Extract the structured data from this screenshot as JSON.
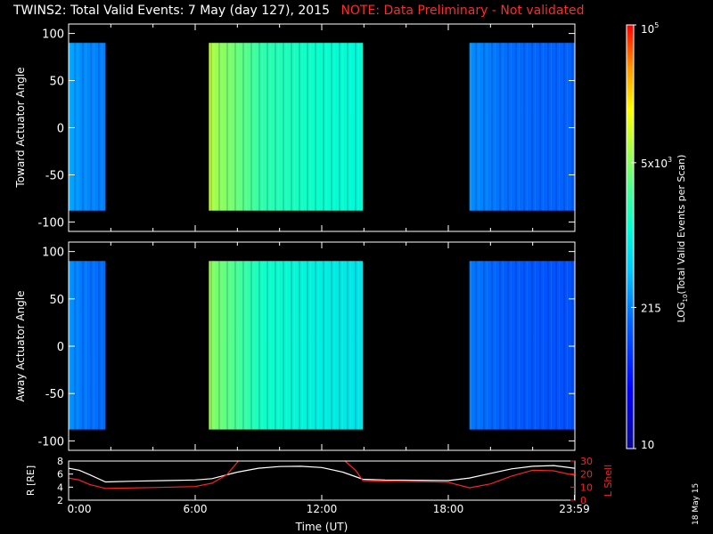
{
  "header": {
    "title": "TWINS2: Total Valid Events:  7 May (day 127), 2015",
    "note": "NOTE: Data Preliminary - Not validated"
  },
  "footer": {
    "stamp": "18 May 15"
  },
  "colors": {
    "axis": "#ffffff",
    "note": "#ff2a2a",
    "background": "#000000",
    "rtrace": "#ffffff",
    "ltrace": "#ff2020"
  },
  "colorbar": {
    "label": "LOG10(Total Valid Events per Scan)",
    "label_main": "LOG",
    "label_sub": "10",
    "label_rest": "(Total Valid Events per Scan)",
    "scale": "log",
    "min": 10,
    "max": 100000,
    "ticks": [
      {
        "value": 10,
        "base": "10",
        "exp": ""
      },
      {
        "value": 215,
        "base": "215",
        "exp": ""
      },
      {
        "value": 5000,
        "base": "5x10",
        "exp": "3"
      },
      {
        "value": 100000,
        "base": "10",
        "exp": "5"
      }
    ]
  },
  "chart_data": [
    {
      "type": "heatmap",
      "panel": "toward",
      "ylabel": "Toward Actuator Angle",
      "xlim_hours": [
        0,
        24
      ],
      "ylim": [
        -110,
        110
      ],
      "yticks": [
        "100",
        "50",
        "0",
        "-50",
        "-100"
      ],
      "ytick_values": [
        100,
        50,
        0,
        -50,
        -100
      ],
      "angle_range": [
        -88,
        90
      ],
      "segments": [
        {
          "start_hour": 0.0,
          "end_hour": 1.75,
          "log_level": 2.4
        },
        {
          "start_hour": 6.65,
          "end_hour": 13.95,
          "log_level": 3.3
        },
        {
          "start_hour": 19.0,
          "end_hour": 23.98,
          "log_level": 2.25
        }
      ]
    },
    {
      "type": "heatmap",
      "panel": "away",
      "ylabel": "Away Actuator Angle",
      "xlim_hours": [
        0,
        24
      ],
      "ylim": [
        -110,
        110
      ],
      "yticks": [
        "100",
        "50",
        "0",
        "-50",
        "-100"
      ],
      "ytick_values": [
        100,
        50,
        0,
        -50,
        -100
      ],
      "angle_range": [
        -88,
        90
      ],
      "segments": [
        {
          "start_hour": 0.0,
          "end_hour": 1.75,
          "log_level": 2.3
        },
        {
          "start_hour": 6.65,
          "end_hour": 13.95,
          "log_level": 3.15
        },
        {
          "start_hour": 19.0,
          "end_hour": 23.98,
          "log_level": 2.15
        }
      ]
    },
    {
      "type": "line",
      "panel": "orbit",
      "ylabel_left": "R [RE]",
      "ylabel_right": "L Shell",
      "ylim_left": [
        2,
        8
      ],
      "ylim_right": [
        0,
        30
      ],
      "yticks_left": [
        "2",
        "4",
        "6",
        "8"
      ],
      "ytick_values_left": [
        2,
        4,
        6,
        8
      ],
      "yticks_right": [
        "0",
        "10",
        "20",
        "30"
      ],
      "ytick_values_right": [
        0,
        10,
        20,
        30
      ],
      "xlabel": "Time (UT)",
      "xticks": [
        "0:00",
        "6:00",
        "12:00",
        "18:00",
        "23:59"
      ],
      "xtick_hours": [
        0,
        6,
        12,
        18,
        23.98
      ],
      "series": [
        {
          "name": "R",
          "axis": "left",
          "x": [
            0,
            0.5,
            1.0,
            1.75,
            3,
            4.5,
            6,
            6.8,
            8,
            9,
            10,
            11,
            12,
            13,
            13.95,
            15,
            16.5,
            18,
            19,
            20,
            21,
            22,
            23,
            23.98
          ],
          "y": [
            6.9,
            6.6,
            5.9,
            4.8,
            4.9,
            5.0,
            5.1,
            5.3,
            6.3,
            6.9,
            7.15,
            7.2,
            7.0,
            6.3,
            5.2,
            5.1,
            5.05,
            5.0,
            5.4,
            6.1,
            6.8,
            7.2,
            7.3,
            6.9
          ]
        },
        {
          "name": "L Shell",
          "axis": "right",
          "x": [
            0,
            0.5,
            1.0,
            1.75,
            4,
            6,
            6.8,
            7.5,
            8.05,
            null,
            13.1,
            13.6,
            13.95,
            15,
            17,
            18,
            19,
            20,
            21,
            22,
            23,
            23.98
          ],
          "y": [
            17,
            15.5,
            12,
            9,
            9.7,
            10.4,
            13,
            19.5,
            30,
            null,
            30,
            23,
            15,
            14.6,
            14.1,
            13.7,
            9.5,
            12.5,
            18.5,
            23,
            22.5,
            19
          ]
        }
      ]
    }
  ]
}
